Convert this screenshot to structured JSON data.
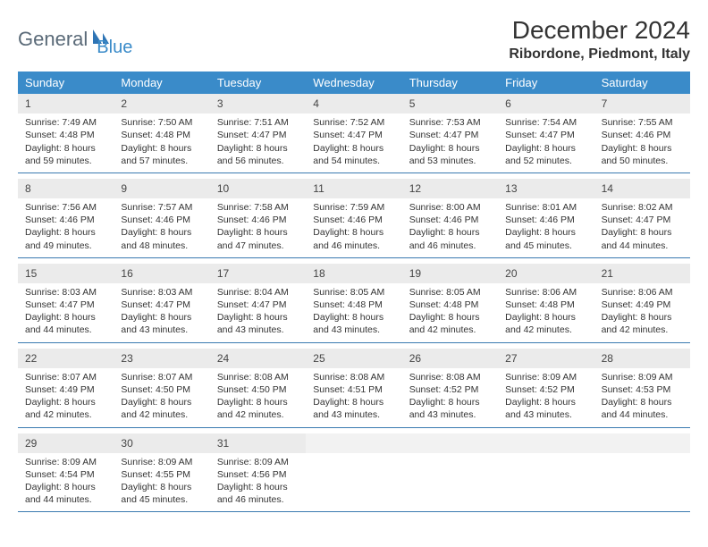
{
  "logo": {
    "part1": "General",
    "part2": "Blue"
  },
  "title": "December 2024",
  "location": "Ribordone, Piedmont, Italy",
  "colors": {
    "header_bg": "#3a8bc9",
    "header_text": "#ffffff",
    "daynum_bg": "#ebebeb",
    "rule": "#3a7ab0",
    "logo_gray": "#5a6a78",
    "logo_blue": "#3a8bc9"
  },
  "weekdays": [
    "Sunday",
    "Monday",
    "Tuesday",
    "Wednesday",
    "Thursday",
    "Friday",
    "Saturday"
  ],
  "weeks": [
    [
      {
        "day": "1",
        "sunrise": "Sunrise: 7:49 AM",
        "sunset": "Sunset: 4:48 PM",
        "dl1": "Daylight: 8 hours",
        "dl2": "and 59 minutes."
      },
      {
        "day": "2",
        "sunrise": "Sunrise: 7:50 AM",
        "sunset": "Sunset: 4:48 PM",
        "dl1": "Daylight: 8 hours",
        "dl2": "and 57 minutes."
      },
      {
        "day": "3",
        "sunrise": "Sunrise: 7:51 AM",
        "sunset": "Sunset: 4:47 PM",
        "dl1": "Daylight: 8 hours",
        "dl2": "and 56 minutes."
      },
      {
        "day": "4",
        "sunrise": "Sunrise: 7:52 AM",
        "sunset": "Sunset: 4:47 PM",
        "dl1": "Daylight: 8 hours",
        "dl2": "and 54 minutes."
      },
      {
        "day": "5",
        "sunrise": "Sunrise: 7:53 AM",
        "sunset": "Sunset: 4:47 PM",
        "dl1": "Daylight: 8 hours",
        "dl2": "and 53 minutes."
      },
      {
        "day": "6",
        "sunrise": "Sunrise: 7:54 AM",
        "sunset": "Sunset: 4:47 PM",
        "dl1": "Daylight: 8 hours",
        "dl2": "and 52 minutes."
      },
      {
        "day": "7",
        "sunrise": "Sunrise: 7:55 AM",
        "sunset": "Sunset: 4:46 PM",
        "dl1": "Daylight: 8 hours",
        "dl2": "and 50 minutes."
      }
    ],
    [
      {
        "day": "8",
        "sunrise": "Sunrise: 7:56 AM",
        "sunset": "Sunset: 4:46 PM",
        "dl1": "Daylight: 8 hours",
        "dl2": "and 49 minutes."
      },
      {
        "day": "9",
        "sunrise": "Sunrise: 7:57 AM",
        "sunset": "Sunset: 4:46 PM",
        "dl1": "Daylight: 8 hours",
        "dl2": "and 48 minutes."
      },
      {
        "day": "10",
        "sunrise": "Sunrise: 7:58 AM",
        "sunset": "Sunset: 4:46 PM",
        "dl1": "Daylight: 8 hours",
        "dl2": "and 47 minutes."
      },
      {
        "day": "11",
        "sunrise": "Sunrise: 7:59 AM",
        "sunset": "Sunset: 4:46 PM",
        "dl1": "Daylight: 8 hours",
        "dl2": "and 46 minutes."
      },
      {
        "day": "12",
        "sunrise": "Sunrise: 8:00 AM",
        "sunset": "Sunset: 4:46 PM",
        "dl1": "Daylight: 8 hours",
        "dl2": "and 46 minutes."
      },
      {
        "day": "13",
        "sunrise": "Sunrise: 8:01 AM",
        "sunset": "Sunset: 4:46 PM",
        "dl1": "Daylight: 8 hours",
        "dl2": "and 45 minutes."
      },
      {
        "day": "14",
        "sunrise": "Sunrise: 8:02 AM",
        "sunset": "Sunset: 4:47 PM",
        "dl1": "Daylight: 8 hours",
        "dl2": "and 44 minutes."
      }
    ],
    [
      {
        "day": "15",
        "sunrise": "Sunrise: 8:03 AM",
        "sunset": "Sunset: 4:47 PM",
        "dl1": "Daylight: 8 hours",
        "dl2": "and 44 minutes."
      },
      {
        "day": "16",
        "sunrise": "Sunrise: 8:03 AM",
        "sunset": "Sunset: 4:47 PM",
        "dl1": "Daylight: 8 hours",
        "dl2": "and 43 minutes."
      },
      {
        "day": "17",
        "sunrise": "Sunrise: 8:04 AM",
        "sunset": "Sunset: 4:47 PM",
        "dl1": "Daylight: 8 hours",
        "dl2": "and 43 minutes."
      },
      {
        "day": "18",
        "sunrise": "Sunrise: 8:05 AM",
        "sunset": "Sunset: 4:48 PM",
        "dl1": "Daylight: 8 hours",
        "dl2": "and 43 minutes."
      },
      {
        "day": "19",
        "sunrise": "Sunrise: 8:05 AM",
        "sunset": "Sunset: 4:48 PM",
        "dl1": "Daylight: 8 hours",
        "dl2": "and 42 minutes."
      },
      {
        "day": "20",
        "sunrise": "Sunrise: 8:06 AM",
        "sunset": "Sunset: 4:48 PM",
        "dl1": "Daylight: 8 hours",
        "dl2": "and 42 minutes."
      },
      {
        "day": "21",
        "sunrise": "Sunrise: 8:06 AM",
        "sunset": "Sunset: 4:49 PM",
        "dl1": "Daylight: 8 hours",
        "dl2": "and 42 minutes."
      }
    ],
    [
      {
        "day": "22",
        "sunrise": "Sunrise: 8:07 AM",
        "sunset": "Sunset: 4:49 PM",
        "dl1": "Daylight: 8 hours",
        "dl2": "and 42 minutes."
      },
      {
        "day": "23",
        "sunrise": "Sunrise: 8:07 AM",
        "sunset": "Sunset: 4:50 PM",
        "dl1": "Daylight: 8 hours",
        "dl2": "and 42 minutes."
      },
      {
        "day": "24",
        "sunrise": "Sunrise: 8:08 AM",
        "sunset": "Sunset: 4:50 PM",
        "dl1": "Daylight: 8 hours",
        "dl2": "and 42 minutes."
      },
      {
        "day": "25",
        "sunrise": "Sunrise: 8:08 AM",
        "sunset": "Sunset: 4:51 PM",
        "dl1": "Daylight: 8 hours",
        "dl2": "and 43 minutes."
      },
      {
        "day": "26",
        "sunrise": "Sunrise: 8:08 AM",
        "sunset": "Sunset: 4:52 PM",
        "dl1": "Daylight: 8 hours",
        "dl2": "and 43 minutes."
      },
      {
        "day": "27",
        "sunrise": "Sunrise: 8:09 AM",
        "sunset": "Sunset: 4:52 PM",
        "dl1": "Daylight: 8 hours",
        "dl2": "and 43 minutes."
      },
      {
        "day": "28",
        "sunrise": "Sunrise: 8:09 AM",
        "sunset": "Sunset: 4:53 PM",
        "dl1": "Daylight: 8 hours",
        "dl2": "and 44 minutes."
      }
    ],
    [
      {
        "day": "29",
        "sunrise": "Sunrise: 8:09 AM",
        "sunset": "Sunset: 4:54 PM",
        "dl1": "Daylight: 8 hours",
        "dl2": "and 44 minutes."
      },
      {
        "day": "30",
        "sunrise": "Sunrise: 8:09 AM",
        "sunset": "Sunset: 4:55 PM",
        "dl1": "Daylight: 8 hours",
        "dl2": "and 45 minutes."
      },
      {
        "day": "31",
        "sunrise": "Sunrise: 8:09 AM",
        "sunset": "Sunset: 4:56 PM",
        "dl1": "Daylight: 8 hours",
        "dl2": "and 46 minutes."
      },
      {
        "day": "",
        "empty": true
      },
      {
        "day": "",
        "empty": true
      },
      {
        "day": "",
        "empty": true
      },
      {
        "day": "",
        "empty": true
      }
    ]
  ]
}
